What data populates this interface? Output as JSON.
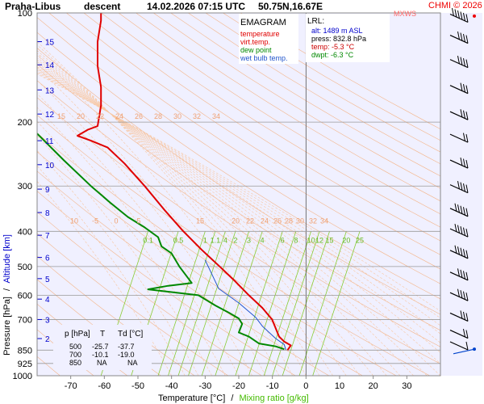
{
  "header": {
    "station": "Praha-Libus",
    "phase": "descent",
    "datetime": "14.02.2026 07:15 UTC",
    "coords": "50.75N,16.67E",
    "mxws": "MXWS",
    "credit": "CHMI © 2026"
  },
  "legend": {
    "title": "EMAGRAM",
    "items": [
      {
        "label": "temperature",
        "color": "#e00000"
      },
      {
        "label": "virt.temp.",
        "color": "#e00000"
      },
      {
        "label": "dew point",
        "color": "#008800"
      },
      {
        "label": "wet bulb temp.",
        "color": "#2255cc"
      }
    ]
  },
  "lrl_box": {
    "title": "LRL:",
    "lines": [
      {
        "text": "alt: 1489 m ASL",
        "color": "#0000cc"
      },
      {
        "text": "press: 832.8 hPa",
        "color": "#000000"
      },
      {
        "text": "temp: -5.3 °C",
        "color": "#cc0000"
      },
      {
        "text": "dwpt: -6.3 °C",
        "color": "#008800"
      }
    ]
  },
  "table": {
    "headers": [
      "p [hPa]",
      "T",
      "Td [°C]"
    ],
    "rows": [
      [
        "500",
        "-25.7",
        "-37.7"
      ],
      [
        "700",
        "-10.1",
        "-19.0"
      ],
      [
        "850",
        "NA",
        "NA"
      ]
    ]
  },
  "axes": {
    "ylabel_a": "Pressure [hPa]",
    "ylabel_sep": "/",
    "ylabel_b": "Altitude [km]",
    "xlabel_a": "Temperature [°C]",
    "xlabel_sep": "/",
    "xlabel_b": "Mixing ratio [g/kg]"
  },
  "chart_data": {
    "type": "line",
    "y_scale": "log",
    "ylim": [
      1000,
      100
    ],
    "xlim": [
      -80,
      40
    ],
    "x_ticks": [
      -70,
      -60,
      -50,
      -40,
      -30,
      -20,
      -10,
      0,
      10,
      20,
      30
    ],
    "pressure_ticks": [
      100,
      200,
      300,
      400,
      500,
      600,
      700,
      850,
      925,
      1000
    ],
    "altitude_ticks": [
      {
        "km": 2,
        "p": 790
      },
      {
        "km": 3,
        "p": 700
      },
      {
        "km": 4,
        "p": 615
      },
      {
        "km": 5,
        "p": 540
      },
      {
        "km": 6,
        "p": 472
      },
      {
        "km": 7,
        "p": 410
      },
      {
        "km": 8,
        "p": 355
      },
      {
        "km": 9,
        "p": 306
      },
      {
        "km": 10,
        "p": 262
      },
      {
        "km": 11,
        "p": 225
      },
      {
        "km": 12,
        "p": 190
      },
      {
        "km": 13,
        "p": 163
      },
      {
        "km": 14,
        "p": 139
      },
      {
        "km": 15,
        "p": 120
      }
    ],
    "mixing_ratio_labels_upper": [
      "15",
      "20",
      "22",
      "24",
      "26",
      "28",
      "30",
      "32",
      "34"
    ],
    "mixing_ratio_labels_mid": [
      "10",
      "-5",
      "0",
      "5",
      "15",
      "20",
      "22",
      "24",
      "26",
      "28",
      "30",
      "32",
      "34"
    ],
    "mixing_ratio_labels_lower": [
      {
        "label": "0.1",
        "t": -47
      },
      {
        "label": "0.5",
        "t": -38
      },
      {
        "label": "1",
        "t": -30
      },
      {
        "label": "1.1",
        "t": -27
      },
      {
        "label": "4",
        "t": -24
      },
      {
        "label": "2",
        "t": -21
      },
      {
        "label": "3",
        "t": -17
      },
      {
        "label": "4",
        "t": -13
      },
      {
        "label": "6",
        "t": -7
      },
      {
        "label": "8",
        "t": -3
      },
      {
        "label": "10",
        "t": 1.5
      },
      {
        "label": "12",
        "t": 4
      },
      {
        "label": "15",
        "t": 7
      },
      {
        "label": "20",
        "t": 12
      },
      {
        "label": "25",
        "t": 16
      }
    ],
    "series": [
      {
        "name": "temperature",
        "color": "#e00000",
        "points": [
          [
            -5.5,
            850
          ],
          [
            -4.5,
            825
          ],
          [
            -6.5,
            805
          ],
          [
            -8,
            780
          ],
          [
            -10.1,
            700
          ],
          [
            -13,
            650
          ],
          [
            -17,
            600
          ],
          [
            -21,
            550
          ],
          [
            -25.7,
            500
          ],
          [
            -31,
            450
          ],
          [
            -36.5,
            400
          ],
          [
            -42,
            350
          ],
          [
            -48,
            300
          ],
          [
            -54,
            260
          ],
          [
            -59,
            235
          ],
          [
            -64,
            225
          ],
          [
            -68,
            218
          ],
          [
            -65,
            210
          ],
          [
            -62,
            205
          ],
          [
            -61,
            180
          ],
          [
            -61,
            160
          ],
          [
            -62,
            140
          ],
          [
            -62,
            120
          ],
          [
            -61,
            105
          ],
          [
            -61,
            100
          ]
        ]
      },
      {
        "name": "dew point",
        "color": "#008800",
        "points": [
          [
            -6.5,
            845
          ],
          [
            -9,
            830
          ],
          [
            -14,
            815
          ],
          [
            -17,
            780
          ],
          [
            -20,
            760
          ],
          [
            -19,
            720
          ],
          [
            -20,
            695
          ],
          [
            -23,
            670
          ],
          [
            -27,
            640
          ],
          [
            -32,
            600
          ],
          [
            -47,
            578
          ],
          [
            -41,
            565
          ],
          [
            -34,
            555
          ],
          [
            -37.7,
            500
          ],
          [
            -40,
            460
          ],
          [
            -43,
            440
          ],
          [
            -44,
            415
          ],
          [
            -48,
            390
          ],
          [
            -53,
            365
          ],
          [
            -58,
            335
          ],
          [
            -64,
            300
          ],
          [
            -72,
            255
          ],
          [
            -80,
            215
          ]
        ]
      },
      {
        "name": "wet bulb temp.",
        "color": "#2255cc",
        "points": [
          [
            -6,
            848
          ],
          [
            -6.5,
            820
          ],
          [
            -9,
            790
          ],
          [
            -13,
            730
          ],
          [
            -15,
            690
          ],
          [
            -20,
            630
          ],
          [
            -26,
            575
          ],
          [
            -28,
            525
          ],
          [
            -30,
            480
          ]
        ]
      }
    ],
    "wind_barbs": [
      {
        "p": 105,
        "speed_kt": 55
      },
      {
        "p": 120,
        "speed_kt": 40
      },
      {
        "p": 140,
        "speed_kt": 35
      },
      {
        "p": 165,
        "speed_kt": 30
      },
      {
        "p": 195,
        "speed_kt": 25
      },
      {
        "p": 225,
        "speed_kt": 20
      },
      {
        "p": 265,
        "speed_kt": 25
      },
      {
        "p": 310,
        "speed_kt": 35
      },
      {
        "p": 360,
        "speed_kt": 45
      },
      {
        "p": 410,
        "speed_kt": 50
      },
      {
        "p": 470,
        "speed_kt": 45
      },
      {
        "p": 540,
        "speed_kt": 40
      },
      {
        "p": 615,
        "speed_kt": 35
      },
      {
        "p": 700,
        "speed_kt": 25
      },
      {
        "p": 780,
        "speed_kt": 20
      },
      {
        "p": 840,
        "speed_kt": 10
      }
    ]
  }
}
